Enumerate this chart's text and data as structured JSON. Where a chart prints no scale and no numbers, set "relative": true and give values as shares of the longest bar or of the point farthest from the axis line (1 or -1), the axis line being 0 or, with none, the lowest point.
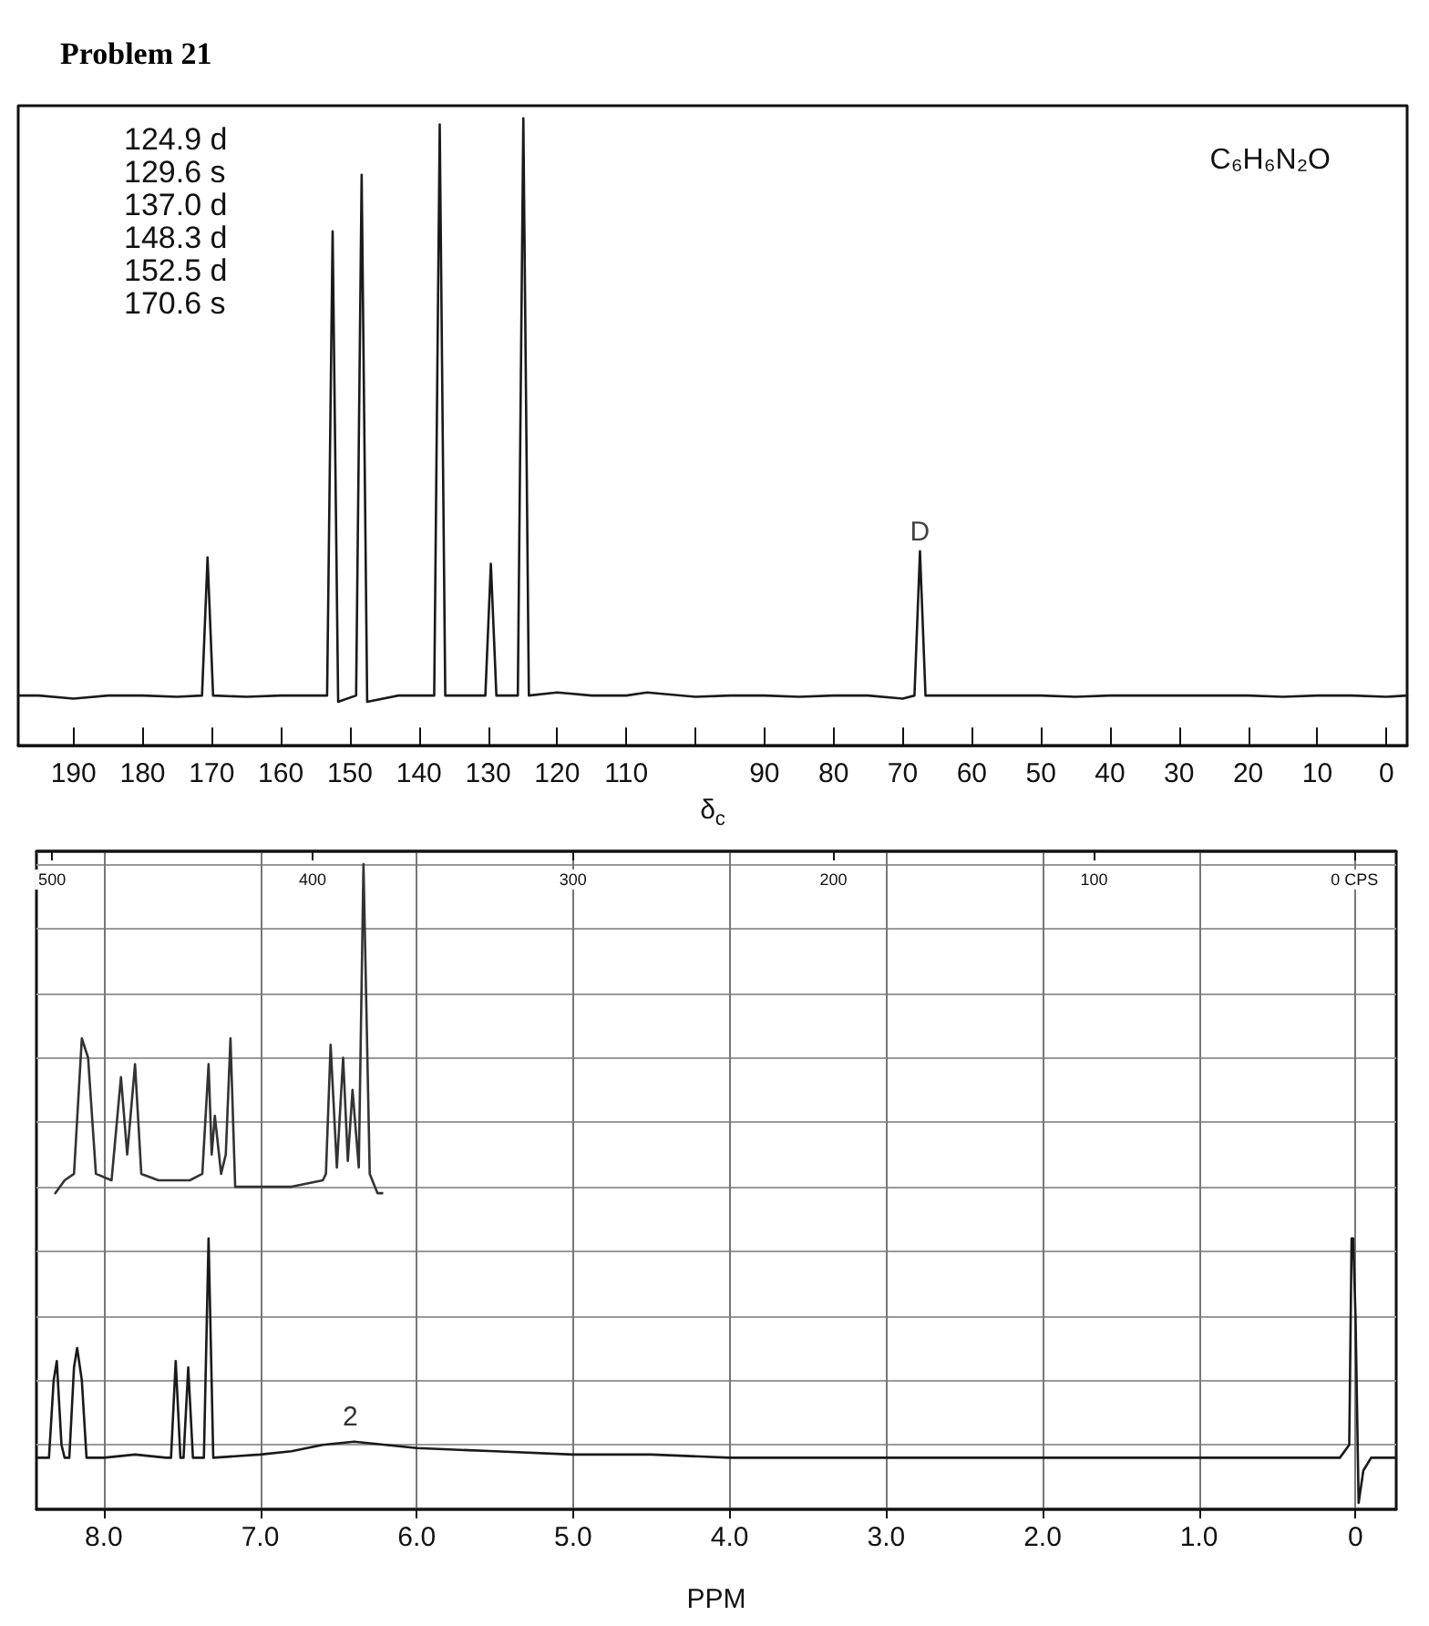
{
  "chart_data": [
    {
      "type": "line",
      "title": "Problem 21",
      "xlabel": "δ$_{c}$",
      "relative": true,
      "xlim": [
        198,
        -3
      ],
      "xticks": [
        190,
        180,
        170,
        160,
        150,
        140,
        130,
        120,
        110,
        {
          "value": 100,
          "label": null
        },
        90,
        80,
        70,
        60,
        50,
        40,
        30,
        20,
        10,
        0
      ],
      "annotations": [
        "124.9 d",
        "129.6 s",
        "137.0 d",
        "148.3 d",
        "152.5 d",
        "170.6 s",
        "C₆H₆N₂O",
        {
          "text": "D",
          "x": 67.5,
          "y": 0.31
        }
      ],
      "series": [
        {
          "color": "#1a1a1a",
          "x": [
            198,
            195,
            190,
            185,
            180,
            175,
            171.4,
            170.6,
            169.8,
            165,
            160,
            155,
            153.3,
            152.5,
            151.7,
            149.1,
            148.3,
            147.5,
            143,
            137.8,
            137.0,
            136.2,
            132,
            130.4,
            129.6,
            128.8,
            125.7,
            124.9,
            124.1,
            120,
            115,
            110,
            107,
            100,
            95,
            90,
            85,
            80,
            75,
            70,
            68.3,
            67.5,
            66.7,
            60,
            55,
            50,
            45,
            40,
            35,
            30,
            25,
            20,
            15,
            10,
            5,
            0,
            -3
          ],
          "values": [
            0.08,
            0.08,
            0.075,
            0.08,
            0.08,
            0.078,
            0.08,
            0.3,
            0.08,
            0.078,
            0.08,
            0.08,
            0.08,
            0.82,
            0.07,
            0.08,
            0.91,
            0.07,
            0.08,
            0.08,
            0.99,
            0.08,
            0.08,
            0.08,
            0.29,
            0.08,
            0.08,
            1,
            0.08,
            0.085,
            0.08,
            0.08,
            0.085,
            0.078,
            0.08,
            0.08,
            0.078,
            0.08,
            0.08,
            0.075,
            0.08,
            0.31,
            0.08,
            0.08,
            0.08,
            0.08,
            0.078,
            0.08,
            0.08,
            0.08,
            0.08,
            0.08,
            0.078,
            0.08,
            0.08,
            0.078,
            0.08
          ]
        }
      ]
    },
    {
      "type": "line",
      "xlabel": "PPM",
      "relative": true,
      "grid": true,
      "xlim": [
        8.43,
        -0.26
      ],
      "xticks": [
        {
          "value": 8,
          "label": "8.0"
        },
        {
          "value": 7,
          "label": "7.0"
        },
        {
          "value": 6,
          "label": "6.0"
        },
        {
          "value": 5,
          "label": "5.0"
        },
        {
          "value": 4,
          "label": "4.0"
        },
        {
          "value": 3,
          "label": "3.0"
        },
        {
          "value": 2,
          "label": "2.0"
        },
        {
          "value": 1,
          "label": "1.0"
        },
        0
      ],
      "x2lim": [
        506,
        -16
      ],
      "x2ticks": [
        500,
        400,
        300,
        200,
        100,
        {
          "value": 0,
          "label": "0 CPS"
        }
      ],
      "annotations": [
        "2"
      ],
      "series": [
        {
          "color": "#1a1a1a",
          "x": [
            8.43,
            8.35,
            8.32,
            8.3,
            8.27,
            8.25,
            8.22,
            8.19,
            8.17,
            8.14,
            8.11,
            8.0,
            7.8,
            7.6,
            7.57,
            7.54,
            7.51,
            7.49,
            7.46,
            7.43,
            7.36,
            7.33,
            7.3,
            7.0,
            6.8,
            6.6,
            6.4,
            6.2,
            6.0,
            5.5,
            5.0,
            4.5,
            4.0,
            3.5,
            3.0,
            2.5,
            2.0,
            1.5,
            1.0,
            0.5,
            0.1,
            0.04,
            0.025,
            0.015,
            0.0,
            -0.02,
            -0.05,
            -0.1,
            -0.26
          ],
          "values": [
            0.08,
            0.08,
            0.2,
            0.23,
            0.1,
            0.08,
            0.08,
            0.22,
            0.25,
            0.2,
            0.08,
            0.08,
            0.085,
            0.08,
            0.08,
            0.23,
            0.08,
            0.08,
            0.22,
            0.08,
            0.08,
            0.42,
            0.08,
            0.085,
            0.09,
            0.1,
            0.105,
            0.1,
            0.095,
            0.09,
            0.085,
            0.085,
            0.08,
            0.08,
            0.08,
            0.08,
            0.08,
            0.08,
            0.08,
            0.08,
            0.08,
            0.1,
            0.42,
            0.42,
            0.3,
            0.01,
            0.06,
            0.08,
            0.08
          ]
        },
        {
          "color": "#333333",
          "x": [
            8.31,
            8.25,
            8.19,
            8.14,
            8.1,
            8.05,
            7.95,
            7.89,
            7.85,
            7.8,
            7.76,
            7.65,
            7.45,
            7.37,
            7.33,
            7.31,
            7.29,
            7.25,
            7.22,
            7.19,
            7.16,
            7.0,
            6.8,
            6.6,
            6.58,
            6.55,
            6.51,
            6.47,
            6.44,
            6.41,
            6.37,
            6.34,
            6.3,
            6.25,
            6.22
          ],
          "values": [
            0.49,
            0.51,
            0.52,
            0.73,
            0.7,
            0.52,
            0.51,
            0.67,
            0.55,
            0.69,
            0.52,
            0.51,
            0.51,
            0.52,
            0.69,
            0.55,
            0.61,
            0.52,
            0.55,
            0.73,
            0.5,
            0.5,
            0.5,
            0.51,
            0.52,
            0.72,
            0.53,
            0.7,
            0.54,
            0.65,
            0.53,
            1,
            0.52,
            0.49,
            0.49
          ]
        }
      ]
    }
  ]
}
